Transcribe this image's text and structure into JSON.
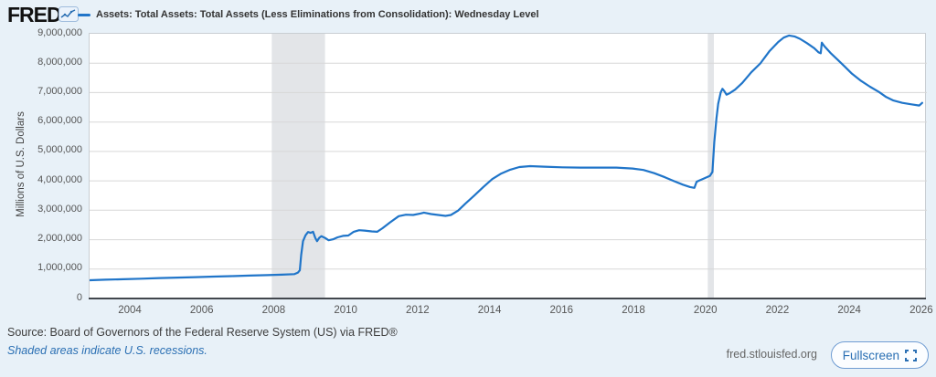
{
  "header": {
    "logo_text": "FRED",
    "legend_label": "Assets: Total Assets: Total Assets (Less Eliminations from Consolidation): Wednesday Level"
  },
  "chart_data": {
    "type": "line",
    "title": "Assets: Total Assets: Total Assets (Less Eliminations from Consolidation): Wednesday Level",
    "ylabel": "Millions of U.S. Dollars",
    "xlabel": "",
    "x_ticks": [
      "2004",
      "2006",
      "2008",
      "2010",
      "2012",
      "2014",
      "2016",
      "2018",
      "2020",
      "2022",
      "2024",
      "2026"
    ],
    "y_ticks": [
      "0",
      "1,000,000",
      "2,000,000",
      "3,000,000",
      "4,000,000",
      "5,000,000",
      "6,000,000",
      "7,000,000",
      "8,000,000",
      "9,000,000"
    ],
    "x_range": [
      2002.857,
      2026.13
    ],
    "y_range": [
      0,
      9000000
    ],
    "grid": "horizontal-only",
    "legend_position": "top-left-header",
    "recessions": [
      [
        2007.92,
        2009.4
      ],
      [
        2020.04,
        2020.21
      ]
    ],
    "series": [
      {
        "name": "Assets: Total Assets: Total Assets (Less Eliminations from Consolidation): Wednesday Level",
        "points": [
          [
            2002.86,
            620000
          ],
          [
            2003.3,
            640000
          ],
          [
            2003.8,
            655000
          ],
          [
            2004.3,
            675000
          ],
          [
            2004.8,
            695000
          ],
          [
            2005.3,
            710000
          ],
          [
            2005.8,
            725000
          ],
          [
            2006.3,
            745000
          ],
          [
            2006.8,
            760000
          ],
          [
            2007.3,
            780000
          ],
          [
            2007.8,
            795000
          ],
          [
            2008.2,
            810000
          ],
          [
            2008.55,
            830000
          ],
          [
            2008.65,
            880000
          ],
          [
            2008.7,
            960000
          ],
          [
            2008.74,
            1480000
          ],
          [
            2008.79,
            1950000
          ],
          [
            2008.86,
            2150000
          ],
          [
            2008.93,
            2260000
          ],
          [
            2009.0,
            2230000
          ],
          [
            2009.07,
            2270000
          ],
          [
            2009.13,
            2060000
          ],
          [
            2009.18,
            1950000
          ],
          [
            2009.24,
            2060000
          ],
          [
            2009.3,
            2120000
          ],
          [
            2009.4,
            2060000
          ],
          [
            2009.5,
            1980000
          ],
          [
            2009.62,
            2010000
          ],
          [
            2009.75,
            2080000
          ],
          [
            2009.9,
            2130000
          ],
          [
            2010.05,
            2140000
          ],
          [
            2010.2,
            2270000
          ],
          [
            2010.35,
            2320000
          ],
          [
            2010.5,
            2310000
          ],
          [
            2010.7,
            2280000
          ],
          [
            2010.85,
            2270000
          ],
          [
            2011.0,
            2390000
          ],
          [
            2011.2,
            2580000
          ],
          [
            2011.45,
            2800000
          ],
          [
            2011.65,
            2850000
          ],
          [
            2011.85,
            2840000
          ],
          [
            2012.05,
            2890000
          ],
          [
            2012.15,
            2920000
          ],
          [
            2012.35,
            2870000
          ],
          [
            2012.55,
            2840000
          ],
          [
            2012.75,
            2810000
          ],
          [
            2012.9,
            2840000
          ],
          [
            2013.1,
            2990000
          ],
          [
            2013.3,
            3220000
          ],
          [
            2013.55,
            3500000
          ],
          [
            2013.8,
            3790000
          ],
          [
            2014.05,
            4060000
          ],
          [
            2014.3,
            4250000
          ],
          [
            2014.55,
            4380000
          ],
          [
            2014.8,
            4470000
          ],
          [
            2015.1,
            4500000
          ],
          [
            2015.5,
            4480000
          ],
          [
            2016.0,
            4460000
          ],
          [
            2016.5,
            4450000
          ],
          [
            2017.0,
            4450000
          ],
          [
            2017.5,
            4450000
          ],
          [
            2017.95,
            4420000
          ],
          [
            2018.25,
            4370000
          ],
          [
            2018.55,
            4260000
          ],
          [
            2018.85,
            4120000
          ],
          [
            2019.1,
            3990000
          ],
          [
            2019.35,
            3870000
          ],
          [
            2019.55,
            3790000
          ],
          [
            2019.67,
            3760000
          ],
          [
            2019.73,
            3970000
          ],
          [
            2019.82,
            4020000
          ],
          [
            2019.95,
            4090000
          ],
          [
            2020.1,
            4170000
          ],
          [
            2020.17,
            4300000
          ],
          [
            2020.22,
            5300000
          ],
          [
            2020.28,
            6120000
          ],
          [
            2020.33,
            6620000
          ],
          [
            2020.4,
            7010000
          ],
          [
            2020.45,
            7130000
          ],
          [
            2020.5,
            7050000
          ],
          [
            2020.56,
            6930000
          ],
          [
            2020.65,
            6980000
          ],
          [
            2020.8,
            7100000
          ],
          [
            2021.0,
            7330000
          ],
          [
            2021.25,
            7690000
          ],
          [
            2021.5,
            7990000
          ],
          [
            2021.75,
            8400000
          ],
          [
            2022.0,
            8720000
          ],
          [
            2022.15,
            8870000
          ],
          [
            2022.3,
            8940000
          ],
          [
            2022.45,
            8910000
          ],
          [
            2022.6,
            8830000
          ],
          [
            2022.8,
            8680000
          ],
          [
            2023.0,
            8510000
          ],
          [
            2023.12,
            8370000
          ],
          [
            2023.18,
            8340000
          ],
          [
            2023.21,
            8700000
          ],
          [
            2023.28,
            8580000
          ],
          [
            2023.45,
            8350000
          ],
          [
            2023.65,
            8120000
          ],
          [
            2023.85,
            7880000
          ],
          [
            2024.05,
            7640000
          ],
          [
            2024.3,
            7400000
          ],
          [
            2024.55,
            7200000
          ],
          [
            2024.8,
            7020000
          ],
          [
            2025.0,
            6850000
          ],
          [
            2025.2,
            6730000
          ],
          [
            2025.45,
            6650000
          ],
          [
            2025.7,
            6600000
          ],
          [
            2025.92,
            6560000
          ],
          [
            2026.0,
            6650000
          ]
        ]
      }
    ]
  },
  "colors": {
    "page_bg": "#e8f1f8",
    "plot_bg": "#ffffff",
    "line": "#2075c9",
    "grid": "#d7d7d7",
    "recession_band": "#e3e5e8",
    "axis_line": "#42474d",
    "link_blue": "#2a6fb3"
  },
  "footer": {
    "source_line": "Source: Board of Governors of the Federal Reserve System (US) via FRED®",
    "recession_note": "Shaded areas indicate U.S. recessions.",
    "site": "fred.stlouisfed.org",
    "fullscreen_label": "Fullscreen"
  }
}
